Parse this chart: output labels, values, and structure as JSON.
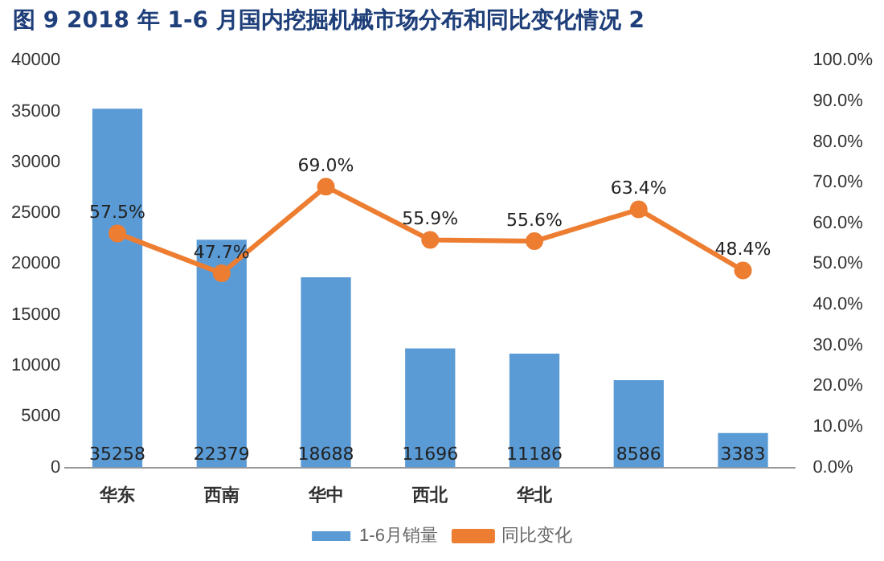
{
  "chart_data": {
    "type": "bar",
    "title": "图 9    2018 年 1-6 月国内挖掘机械市场分布和同比变化情况 2",
    "categories": [
      "华东",
      "西南",
      "华中",
      "西北",
      "华北",
      null,
      null
    ],
    "series": [
      {
        "name": "1-6月销量",
        "color": "#5b9bd5",
        "values": [
          35258,
          22379,
          18688,
          11696,
          11186,
          8586,
          3383
        ]
      },
      {
        "name": "同比变化",
        "type": "line",
        "axis": "y2",
        "color": "#ed7d31",
        "marker": "circle",
        "values": [
          57.5,
          47.7,
          69.0,
          55.9,
          55.6,
          63.4,
          48.4
        ],
        "value_labels": [
          "57.5%",
          "47.7%",
          "69.0%",
          "55.9%",
          "55.6%",
          "63.4%",
          "48.4%"
        ]
      }
    ],
    "ylim": [
      0,
      40000
    ],
    "yticks": [
      0,
      5000,
      10000,
      15000,
      20000,
      25000,
      30000,
      35000,
      40000
    ],
    "y2lim": [
      0,
      100
    ],
    "y2ticks": [
      {
        "value": 0,
        "label": "0.0%"
      },
      {
        "value": 10,
        "label": "10.0%"
      },
      {
        "value": 20,
        "label": "20.0%"
      },
      {
        "value": 30,
        "label": "30.0%"
      },
      {
        "value": 40,
        "label": "40.0%"
      },
      {
        "value": 50,
        "label": "50.0%"
      },
      {
        "value": 60,
        "label": "60.0%"
      },
      {
        "value": 70,
        "label": "70.0%"
      },
      {
        "value": 80,
        "label": "80.0%"
      },
      {
        "value": 90,
        "label": "90.0%"
      },
      {
        "value": 100,
        "label": "100.0%"
      }
    ],
    "data_labels": true,
    "grid": false,
    "legend": "bottom"
  }
}
